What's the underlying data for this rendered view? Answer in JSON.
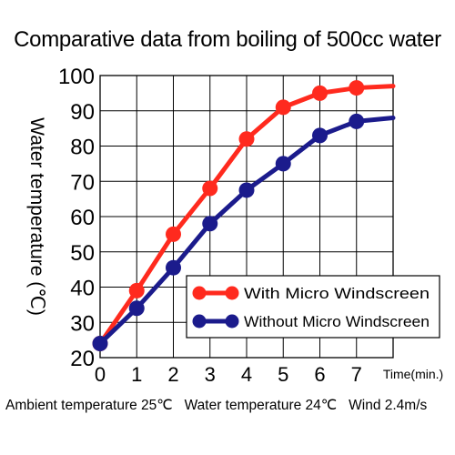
{
  "chart_data": {
    "type": "line",
    "title": "Comparative data from boiling of 500cc water",
    "ylabel": "Water temperature (℃)",
    "xlabel": "Time(min.)",
    "x": [
      0,
      1,
      2,
      3,
      4,
      5,
      6,
      7
    ],
    "x_ticks": [
      "0",
      "1",
      "2",
      "3",
      "4",
      "5",
      "6",
      "7"
    ],
    "y_ticks": [
      "20",
      "30",
      "40",
      "50",
      "60",
      "70",
      "80",
      "90",
      "100"
    ],
    "xlim": [
      0,
      8
    ],
    "ylim": [
      20,
      100
    ],
    "grid": true,
    "legend_placement": "bottom-right",
    "series": [
      {
        "name": "With Micro Windscreen",
        "color": "#ff2a1e",
        "values": [
          24,
          39,
          55,
          68,
          82,
          91,
          95,
          96.5
        ],
        "continues_to": [
          8,
          97
        ]
      },
      {
        "name": "Without Micro Windscreen",
        "color": "#1b1b8c",
        "values": [
          24,
          34,
          45.5,
          58,
          67.5,
          75,
          83,
          87
        ],
        "continues_to": [
          8,
          88
        ]
      }
    ],
    "footnote": "Ambient temperature 25℃   Water temperature 24℃   Wind 2.4m/s"
  }
}
